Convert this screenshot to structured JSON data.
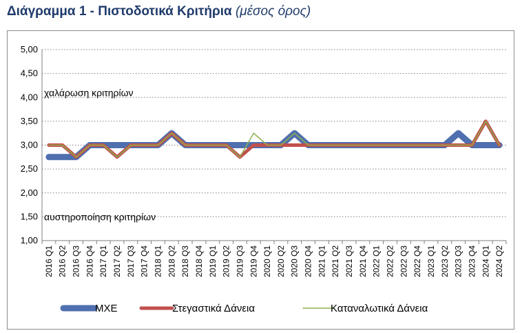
{
  "title": {
    "main": "Διάγραμμα 1 - Πιστοδοτικά Κριτήρια",
    "sub": "(μέσος όρος)"
  },
  "chart_data": {
    "type": "line",
    "title": "Διάγραμμα 1 - Πιστοδοτικά Κριτήρια (μέσος όρος)",
    "x": [
      "2016 Q1",
      "2016 Q2",
      "2016 Q3",
      "2016 Q4",
      "2017 Q1",
      "2017 Q2",
      "2017 Q3",
      "2017 Q4",
      "2018 Q1",
      "2018 Q2",
      "2018 Q3",
      "2018 Q4",
      "2019 Q1",
      "2019 Q2",
      "2019 Q3",
      "2019 Q4",
      "2020 Q1",
      "2020 Q2",
      "2020 Q3",
      "2020 Q4",
      "2021 Q1",
      "2021 Q2",
      "2021 Q3",
      "2021 Q4",
      "2022 Q1",
      "2022 Q2",
      "2022 Q3",
      "2022 Q4",
      "2023 Q1",
      "2023 Q2",
      "2023 Q3",
      "2023 Q4",
      "2024 Q1",
      "2024 Q2"
    ],
    "ylim": [
      1.0,
      5.0
    ],
    "yticks": [
      "1,00",
      "1,50",
      "2,00",
      "2,50",
      "3,00",
      "3,50",
      "4,00",
      "4,50",
      "5,00"
    ],
    "grid": true,
    "legend_position": "bottom",
    "annotations": [
      {
        "text": "χαλάρωση κριτηρίων",
        "y": 4.1
      },
      {
        "text": "αυστηροποίηση κριτηρίων",
        "y": 1.5
      }
    ],
    "series": [
      {
        "name": "ΜΧΕ",
        "color": "#4f6faf",
        "values": [
          2.75,
          2.75,
          2.75,
          3.0,
          3.0,
          3.0,
          3.0,
          3.0,
          3.0,
          3.25,
          3.0,
          3.0,
          3.0,
          3.0,
          3.0,
          3.0,
          3.0,
          3.0,
          3.25,
          3.0,
          3.0,
          3.0,
          3.0,
          3.0,
          3.0,
          3.0,
          3.0,
          3.0,
          3.0,
          3.0,
          3.25,
          3.0,
          3.0,
          3.0
        ]
      },
      {
        "name": "Στεγαστικά Δάνεια",
        "color": "#c0504d",
        "values": [
          3.0,
          3.0,
          2.75,
          3.0,
          3.0,
          2.75,
          3.0,
          3.0,
          3.0,
          3.25,
          3.0,
          3.0,
          3.0,
          3.0,
          2.75,
          3.0,
          3.0,
          3.0,
          3.0,
          3.0,
          3.0,
          3.0,
          3.0,
          3.0,
          3.0,
          3.0,
          3.0,
          3.0,
          3.0,
          3.0,
          3.0,
          3.0,
          3.5,
          3.0
        ]
      },
      {
        "name": "Καταναλωτικά Δάνεια",
        "color": "#8db04a",
        "values": [
          3.0,
          3.0,
          2.75,
          3.0,
          3.0,
          2.75,
          3.0,
          3.0,
          3.0,
          3.25,
          3.0,
          3.0,
          3.0,
          3.0,
          2.75,
          3.25,
          3.0,
          3.0,
          3.25,
          3.0,
          3.0,
          3.0,
          3.0,
          3.0,
          3.0,
          3.0,
          3.0,
          3.0,
          3.0,
          3.0,
          3.0,
          3.0,
          3.5,
          3.0
        ]
      }
    ]
  }
}
